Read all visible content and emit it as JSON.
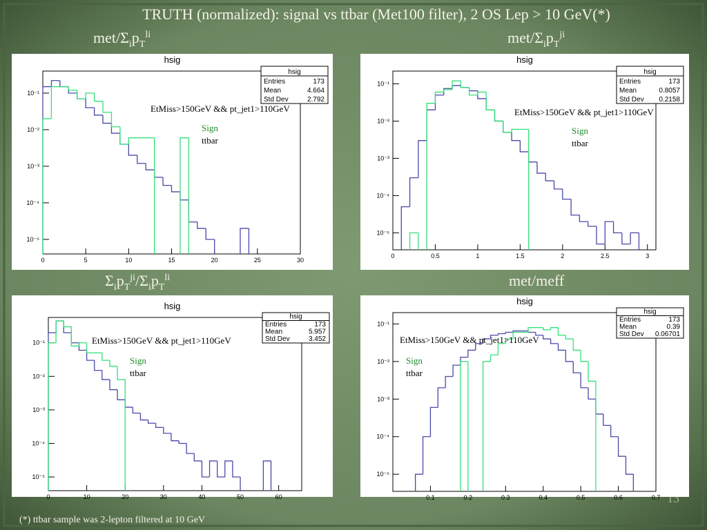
{
  "slide": {
    "title": "TRUTH (normalized): signal vs ttbar (Met100 filter), 2 OS Lep > 10 GeV(*)",
    "footnote": "(*) ttbar sample was 2-lepton filtered at 10 GeV",
    "page_number": "13"
  },
  "chart_data": [
    {
      "type": "histogram",
      "title": "hsig",
      "caption": [
        {
          "base": "met/Σ",
          "sub": "i"
        },
        {
          "base": "p",
          "sub": "T",
          "sup": "li"
        }
      ],
      "annotation": "EtMiss>150GeV && pt_jet1>110GeV",
      "stats": {
        "title": "hsig",
        "rows": [
          {
            "label": "Entries",
            "value": 173
          },
          {
            "label": "Mean",
            "value": 4.664
          },
          {
            "label": "Std Dev",
            "value": 2.792
          }
        ]
      },
      "log_y": true,
      "xlim": [
        0,
        30
      ],
      "ylim": [
        4e-06,
        0.4
      ],
      "xticks": [
        0,
        5,
        10,
        15,
        20,
        25,
        30
      ],
      "yticks": [
        {
          "value": 1e-05,
          "label": "10⁻⁵"
        },
        {
          "value": 0.0001,
          "label": "10⁻⁴"
        },
        {
          "value": 0.001,
          "label": "10⁻³"
        },
        {
          "value": 0.01,
          "label": "10⁻²"
        },
        {
          "value": 0.1,
          "label": "10⁻¹"
        }
      ],
      "bins": [
        0,
        1,
        2,
        3,
        4,
        5,
        6,
        7,
        8,
        9,
        10,
        11,
        12,
        13,
        14,
        15,
        16,
        17,
        18,
        19,
        20,
        21,
        22,
        23,
        24,
        25,
        26,
        27,
        28,
        29,
        30
      ],
      "series": [
        {
          "name": "Sign",
          "color": "#33e07a",
          "label_color": "#1f8a2a",
          "values": [
            0.02,
            0.15,
            0.15,
            0.12,
            0.07,
            0.1,
            0.06,
            0.03,
            0.012,
            0.004,
            0.006,
            0.006,
            0.006,
            null,
            null,
            null,
            0.006,
            null,
            null,
            null,
            null,
            null,
            null,
            null,
            null,
            null,
            null,
            null,
            null,
            null
          ]
        },
        {
          "name": "ttbar",
          "color": "#4848a8",
          "label_color": "#000000",
          "values": [
            0.15,
            0.22,
            0.15,
            0.1,
            0.07,
            0.04,
            0.025,
            0.015,
            0.008,
            0.004,
            0.002,
            0.0012,
            0.0008,
            0.0005,
            0.0003,
            0.0002,
            0.00012,
            3e-05,
            2e-05,
            1e-05,
            null,
            null,
            null,
            2e-05,
            null,
            null,
            null,
            null,
            null,
            null
          ]
        }
      ]
    },
    {
      "type": "histogram",
      "title": "hsig",
      "caption": [
        {
          "base": "met/Σ",
          "sub": "i"
        },
        {
          "base": "p",
          "sub": "T",
          "sup": "ji"
        }
      ],
      "annotation": "EtMiss>150GeV && pt_jet1>110GeV",
      "stats": {
        "title": "hsig",
        "rows": [
          {
            "label": "Entries",
            "value": 173
          },
          {
            "label": "Mean",
            "value": 0.8057
          },
          {
            "label": "Std Dev",
            "value": 0.2158
          }
        ]
      },
      "log_y": true,
      "xlim": [
        0,
        3.1
      ],
      "ylim": [
        3.5e-06,
        0.22
      ],
      "xticks": [
        0,
        0.5,
        1,
        1.5,
        2,
        2.5,
        3
      ],
      "yticks": [
        {
          "value": 1e-05,
          "label": "10⁻⁵"
        },
        {
          "value": 0.0001,
          "label": "10⁻⁴"
        },
        {
          "value": 0.001,
          "label": "10⁻³"
        },
        {
          "value": 0.01,
          "label": "10⁻²"
        },
        {
          "value": 0.1,
          "label": "10⁻¹"
        }
      ],
      "bins": [
        0,
        0.1,
        0.2,
        0.3,
        0.4,
        0.5,
        0.6,
        0.7,
        0.8,
        0.9,
        1,
        1.1,
        1.2,
        1.3,
        1.4,
        1.5,
        1.6,
        1.7,
        1.8,
        1.9,
        2,
        2.1,
        2.2,
        2.3,
        2.4,
        2.5,
        2.6,
        2.7,
        2.8,
        2.9,
        3,
        3.1
      ],
      "series": [
        {
          "name": "Sign",
          "color": "#33e07a",
          "label_color": "#1f8a2a",
          "values": [
            null,
            null,
            1e-05,
            null,
            0.03,
            0.06,
            0.07,
            0.12,
            0.08,
            0.05,
            0.06,
            0.02,
            0.01,
            0.005,
            0.006,
            0.006,
            null,
            null,
            null,
            null,
            null,
            null,
            null,
            null,
            null,
            null,
            null,
            null,
            null,
            null,
            null
          ]
        },
        {
          "name": "ttbar",
          "color": "#4848a8",
          "label_color": "#000000",
          "values": [
            null,
            5e-05,
            0.0003,
            0.003,
            0.02,
            0.05,
            0.075,
            0.09,
            0.08,
            0.065,
            0.04,
            0.02,
            0.01,
            0.005,
            0.003,
            0.0015,
            0.0008,
            0.0004,
            0.00025,
            0.00015,
            8e-05,
            3e-05,
            2e-05,
            1.5e-05,
            5e-06,
            2e-05,
            1e-05,
            5e-06,
            1e-05,
            null,
            null
          ]
        }
      ]
    },
    {
      "type": "histogram",
      "title": "hsig",
      "caption": [
        {
          "base": "Σ",
          "sub": "i"
        },
        {
          "base": "p",
          "sub": "T",
          "sup": "ji"
        },
        {
          "base": "/Σ",
          "sub": "i"
        },
        {
          "base": "p",
          "sub": "T",
          "sup": "li"
        }
      ],
      "annotation": "EtMiss>150GeV && pt_jet1>110GeV",
      "stats": {
        "title": "hsig",
        "rows": [
          {
            "label": "Entries",
            "value": 173
          },
          {
            "label": "Mean",
            "value": 5.957
          },
          {
            "label": "Std Dev",
            "value": 3.452
          }
        ]
      },
      "log_y": true,
      "xlim": [
        0,
        66
      ],
      "ylim": [
        3.9e-06,
        0.57
      ],
      "xticks": [
        0,
        10,
        20,
        30,
        40,
        50,
        60
      ],
      "yticks": [
        {
          "value": 1e-05,
          "label": "10⁻⁵"
        },
        {
          "value": 0.0001,
          "label": "10⁻⁴"
        },
        {
          "value": 0.001,
          "label": "10⁻³"
        },
        {
          "value": 0.01,
          "label": "10⁻²"
        },
        {
          "value": 0.1,
          "label": "10⁻¹"
        }
      ],
      "bins": [
        0,
        2,
        4,
        6,
        8,
        10,
        12,
        14,
        16,
        18,
        20,
        22,
        24,
        26,
        28,
        30,
        32,
        34,
        36,
        38,
        40,
        42,
        44,
        46,
        48,
        50,
        52,
        54,
        56,
        58,
        60,
        62,
        64,
        66
      ],
      "series": [
        {
          "name": "Sign",
          "color": "#33e07a",
          "label_color": "#1f8a2a",
          "values": [
            0.1,
            0.45,
            0.3,
            0.08,
            0.1,
            0.05,
            0.05,
            0.03,
            0.02,
            0.008,
            null,
            null,
            null,
            null,
            null,
            null,
            null,
            null,
            null,
            null,
            null,
            null,
            null,
            null,
            null,
            null,
            null,
            null,
            null,
            null,
            null,
            null,
            null
          ]
        },
        {
          "name": "ttbar",
          "color": "#4848a8",
          "label_color": "#000000",
          "values": [
            0.2,
            0.45,
            0.2,
            0.1,
            0.06,
            0.03,
            0.015,
            0.008,
            0.004,
            0.002,
            0.0012,
            0.0008,
            0.0005,
            0.0004,
            0.0003,
            0.0002,
            0.00012,
            0.0001,
            5e-05,
            3e-05,
            1e-05,
            3e-05,
            1e-05,
            3e-05,
            1e-05,
            null,
            null,
            null,
            3e-05,
            null,
            null,
            null,
            null
          ]
        }
      ]
    },
    {
      "type": "histogram",
      "title": "hsig",
      "caption": [
        {
          "base": "met/meff"
        }
      ],
      "annotation": "EtMiss>150GeV && pt_jet1>110GeV",
      "stats": {
        "title": "hsig",
        "rows": [
          {
            "label": "Entries",
            "value": 173
          },
          {
            "label": "Mean",
            "value": 0.39
          },
          {
            "label": "Std Dev",
            "value": 0.06701
          }
        ]
      },
      "log_y": true,
      "xlim": [
        0,
        0.7
      ],
      "ylim": [
        3.5e-06,
        0.2
      ],
      "xticks": [
        0.1,
        0.2,
        0.3,
        0.4,
        0.5,
        0.6,
        0.7
      ],
      "yticks": [
        {
          "value": 1e-05,
          "label": "10⁻⁵"
        },
        {
          "value": 0.0001,
          "label": "10⁻⁴"
        },
        {
          "value": 0.001,
          "label": "10⁻³"
        },
        {
          "value": 0.01,
          "label": "10⁻²"
        },
        {
          "value": 0.1,
          "label": "10⁻¹"
        }
      ],
      "bins": [
        0,
        0.02,
        0.04,
        0.06,
        0.08,
        0.1,
        0.12,
        0.14,
        0.16,
        0.18,
        0.2,
        0.22,
        0.24,
        0.26,
        0.28,
        0.3,
        0.32,
        0.34,
        0.36,
        0.38,
        0.4,
        0.42,
        0.44,
        0.46,
        0.48,
        0.5,
        0.52,
        0.54,
        0.56,
        0.58,
        0.6,
        0.62,
        0.64,
        0.66,
        0.68,
        0.7
      ],
      "series": [
        {
          "name": "Sign",
          "color": "#33e07a",
          "label_color": "#1f8a2a",
          "values": [
            null,
            null,
            null,
            null,
            null,
            null,
            null,
            null,
            null,
            0.01,
            null,
            null,
            0.01,
            0.015,
            0.03,
            0.04,
            0.06,
            0.06,
            0.08,
            0.08,
            0.07,
            0.08,
            0.05,
            0.04,
            0.02,
            0.01,
            0.003,
            null,
            null,
            null,
            null,
            null,
            null,
            null,
            null
          ]
        },
        {
          "name": "ttbar",
          "color": "#4848a8",
          "label_color": "#000000",
          "values": [
            null,
            null,
            null,
            1e-05,
            0.0001,
            0.0006,
            0.002,
            0.004,
            0.008,
            0.013,
            0.02,
            0.03,
            0.04,
            0.05,
            0.055,
            0.06,
            0.065,
            0.065,
            0.06,
            0.05,
            0.04,
            0.03,
            0.02,
            0.01,
            0.005,
            0.002,
            0.001,
            0.0004,
            0.0002,
            0.0001,
            3e-05,
            1e-05,
            null,
            null,
            null
          ]
        }
      ]
    }
  ]
}
